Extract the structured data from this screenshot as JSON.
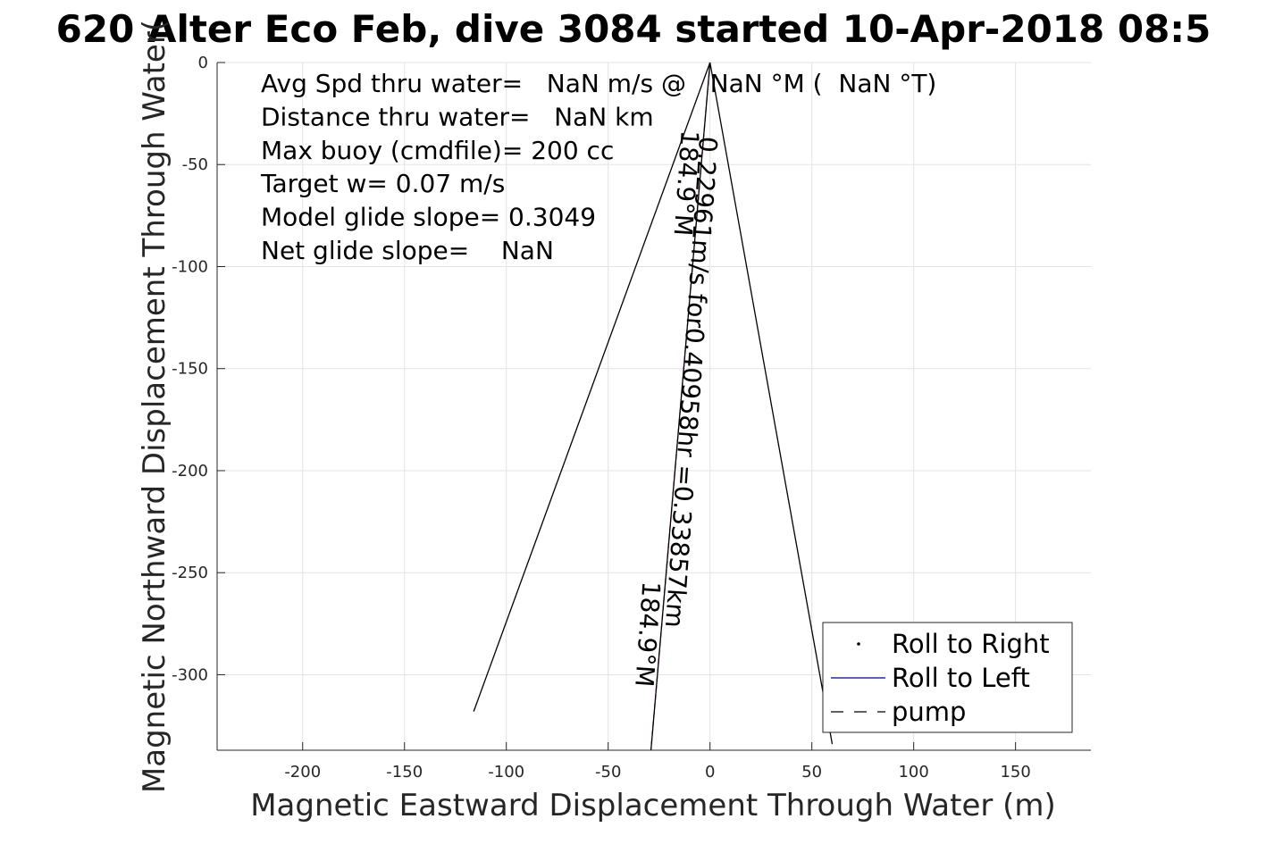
{
  "chart_data": {
    "type": "line",
    "title": "620 Alter Eco Feb, dive 3084 started 10-Apr-2018 08:5",
    "xlabel": "Magnetic Eastward Displacement Through Water (m)",
    "ylabel": "Magnetic Northward Displacement Through Water(",
    "xlim": [
      -242,
      187
    ],
    "ylim": [
      -337,
      0
    ],
    "xticks": [
      -200,
      -150,
      -100,
      -50,
      0,
      50,
      100,
      150
    ],
    "yticks": [
      0,
      -50,
      -100,
      -150,
      -200,
      -250,
      -300
    ],
    "grid": true,
    "legend_position": "bottom-right",
    "legend": [
      {
        "label": "Roll to Right",
        "style": "dot"
      },
      {
        "label": "Roll to Left",
        "style": "solid",
        "color": "#00008b"
      },
      {
        "label": "pump",
        "style": "dashed"
      }
    ],
    "series": [
      {
        "x": [
          0,
          -116
        ],
        "y": [
          0,
          -318
        ],
        "color": "#000000",
        "style": "solid"
      },
      {
        "x": [
          0,
          60
        ],
        "y": [
          0,
          -334
        ],
        "color": "#000000",
        "style": "solid"
      },
      {
        "x": [
          0,
          -29
        ],
        "y": [
          0,
          -337
        ],
        "color": "#cc00cc",
        "style": "dashed"
      },
      {
        "x": [
          0,
          -29
        ],
        "y": [
          0,
          -337
        ],
        "color": "#000000",
        "style": "solid"
      }
    ],
    "info_lines": [
      "Avg Spd thru water=   NaN m/s @   NaN °M (  NaN °T)",
      "Distance thru water=   NaN km",
      "Max buoy (cmdfile)= 200 cc",
      "Target w= 0.07 m/s",
      "Model glide slope= 0.3049",
      "Net glide slope=    NaN"
    ],
    "annotations": [
      {
        "text": "0.22961m/s for0.40958hr =0.33857km",
        "x": -5,
        "y": -36
      },
      {
        "text": "184.9°M",
        "x": -14,
        "y": -33
      },
      {
        "text": "184.9°M",
        "x": -33,
        "y": -254
      }
    ]
  }
}
